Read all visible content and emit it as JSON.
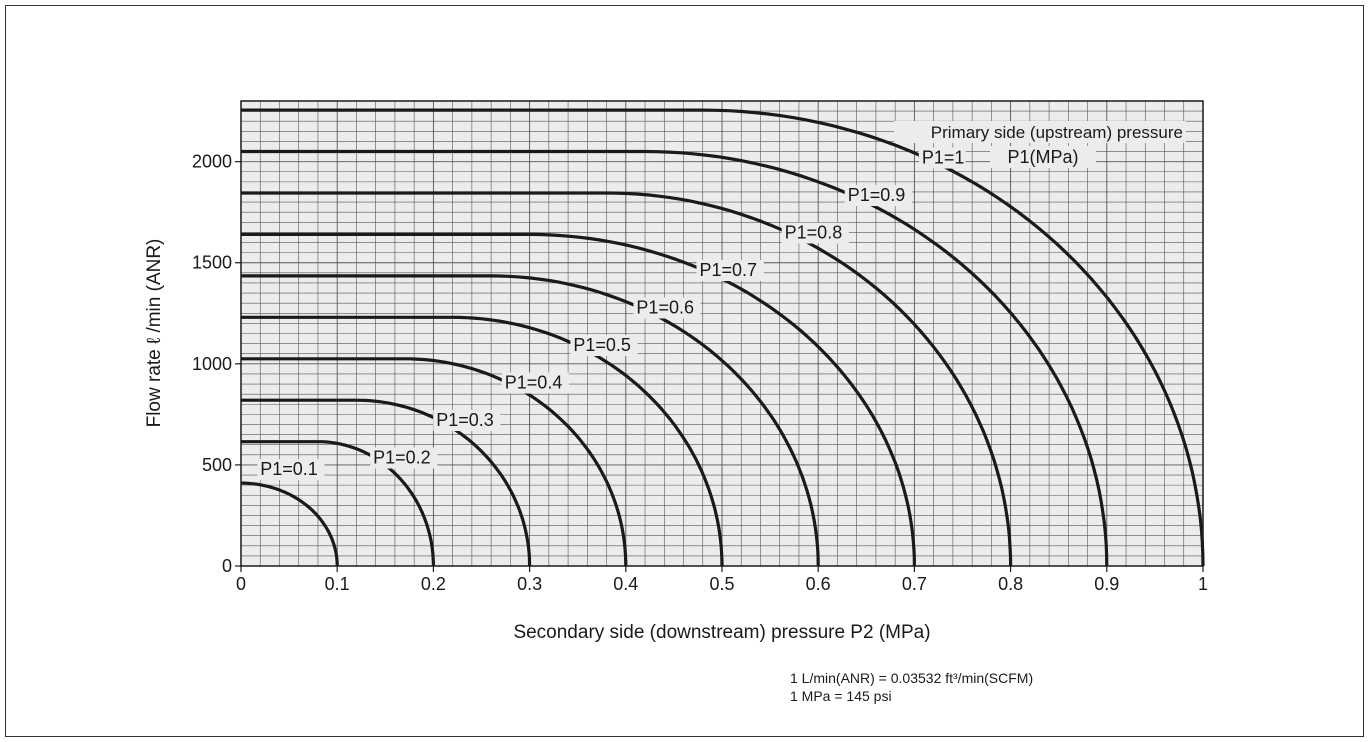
{
  "chart_data": {
    "type": "line",
    "title": "",
    "xlabel": "Secondary side (downstream) pressure P2 (MPa)",
    "ylabel": "Flow rate  ℓ /min (ANR)",
    "xlim": [
      0,
      1
    ],
    "ylim": [
      0,
      2300
    ],
    "grid": true,
    "x_ticks": [
      "0",
      "0.1",
      "0.2",
      "0.3",
      "0.4",
      "0.5",
      "0.6",
      "0.7",
      "0.8",
      "0.9",
      "1"
    ],
    "y_ticks": [
      "0",
      "500",
      "1000",
      "1500",
      "2000"
    ],
    "legend_title": [
      "Primary side (upstream) pressure",
      "P1(MPa)"
    ],
    "series": [
      {
        "name": "P1=0.1",
        "p1": 0.1,
        "max_flow": 410,
        "flat_until_p2": 0.0
      },
      {
        "name": "P1=0.2",
        "p1": 0.2,
        "max_flow": 615,
        "flat_until_p2": 0.08
      },
      {
        "name": "P1=0.3",
        "p1": 0.3,
        "max_flow": 820,
        "flat_until_p2": 0.12
      },
      {
        "name": "P1=0.4",
        "p1": 0.4,
        "max_flow": 1025,
        "flat_until_p2": 0.17
      },
      {
        "name": "P1=0.5",
        "p1": 0.5,
        "max_flow": 1230,
        "flat_until_p2": 0.22
      },
      {
        "name": "P1=0.6",
        "p1": 0.6,
        "max_flow": 1435,
        "flat_until_p2": 0.26
      },
      {
        "name": "P1=0.7",
        "p1": 0.7,
        "max_flow": 1640,
        "flat_until_p2": 0.3
      },
      {
        "name": "P1=0.8",
        "p1": 0.8,
        "max_flow": 1845,
        "flat_until_p2": 0.38
      },
      {
        "name": "P1=0.9",
        "p1": 0.9,
        "max_flow": 2050,
        "flat_until_p2": 0.42
      },
      {
        "name": "P1=1",
        "p1": 1.0,
        "max_flow": 2255,
        "flat_until_p2": 0.48
      }
    ]
  },
  "notes": {
    "conversion_flow": "1 L/min(ANR) = 0.03532 ft³/min(SCFM)",
    "conversion_pressure": "1 MPa = 145 psi"
  }
}
